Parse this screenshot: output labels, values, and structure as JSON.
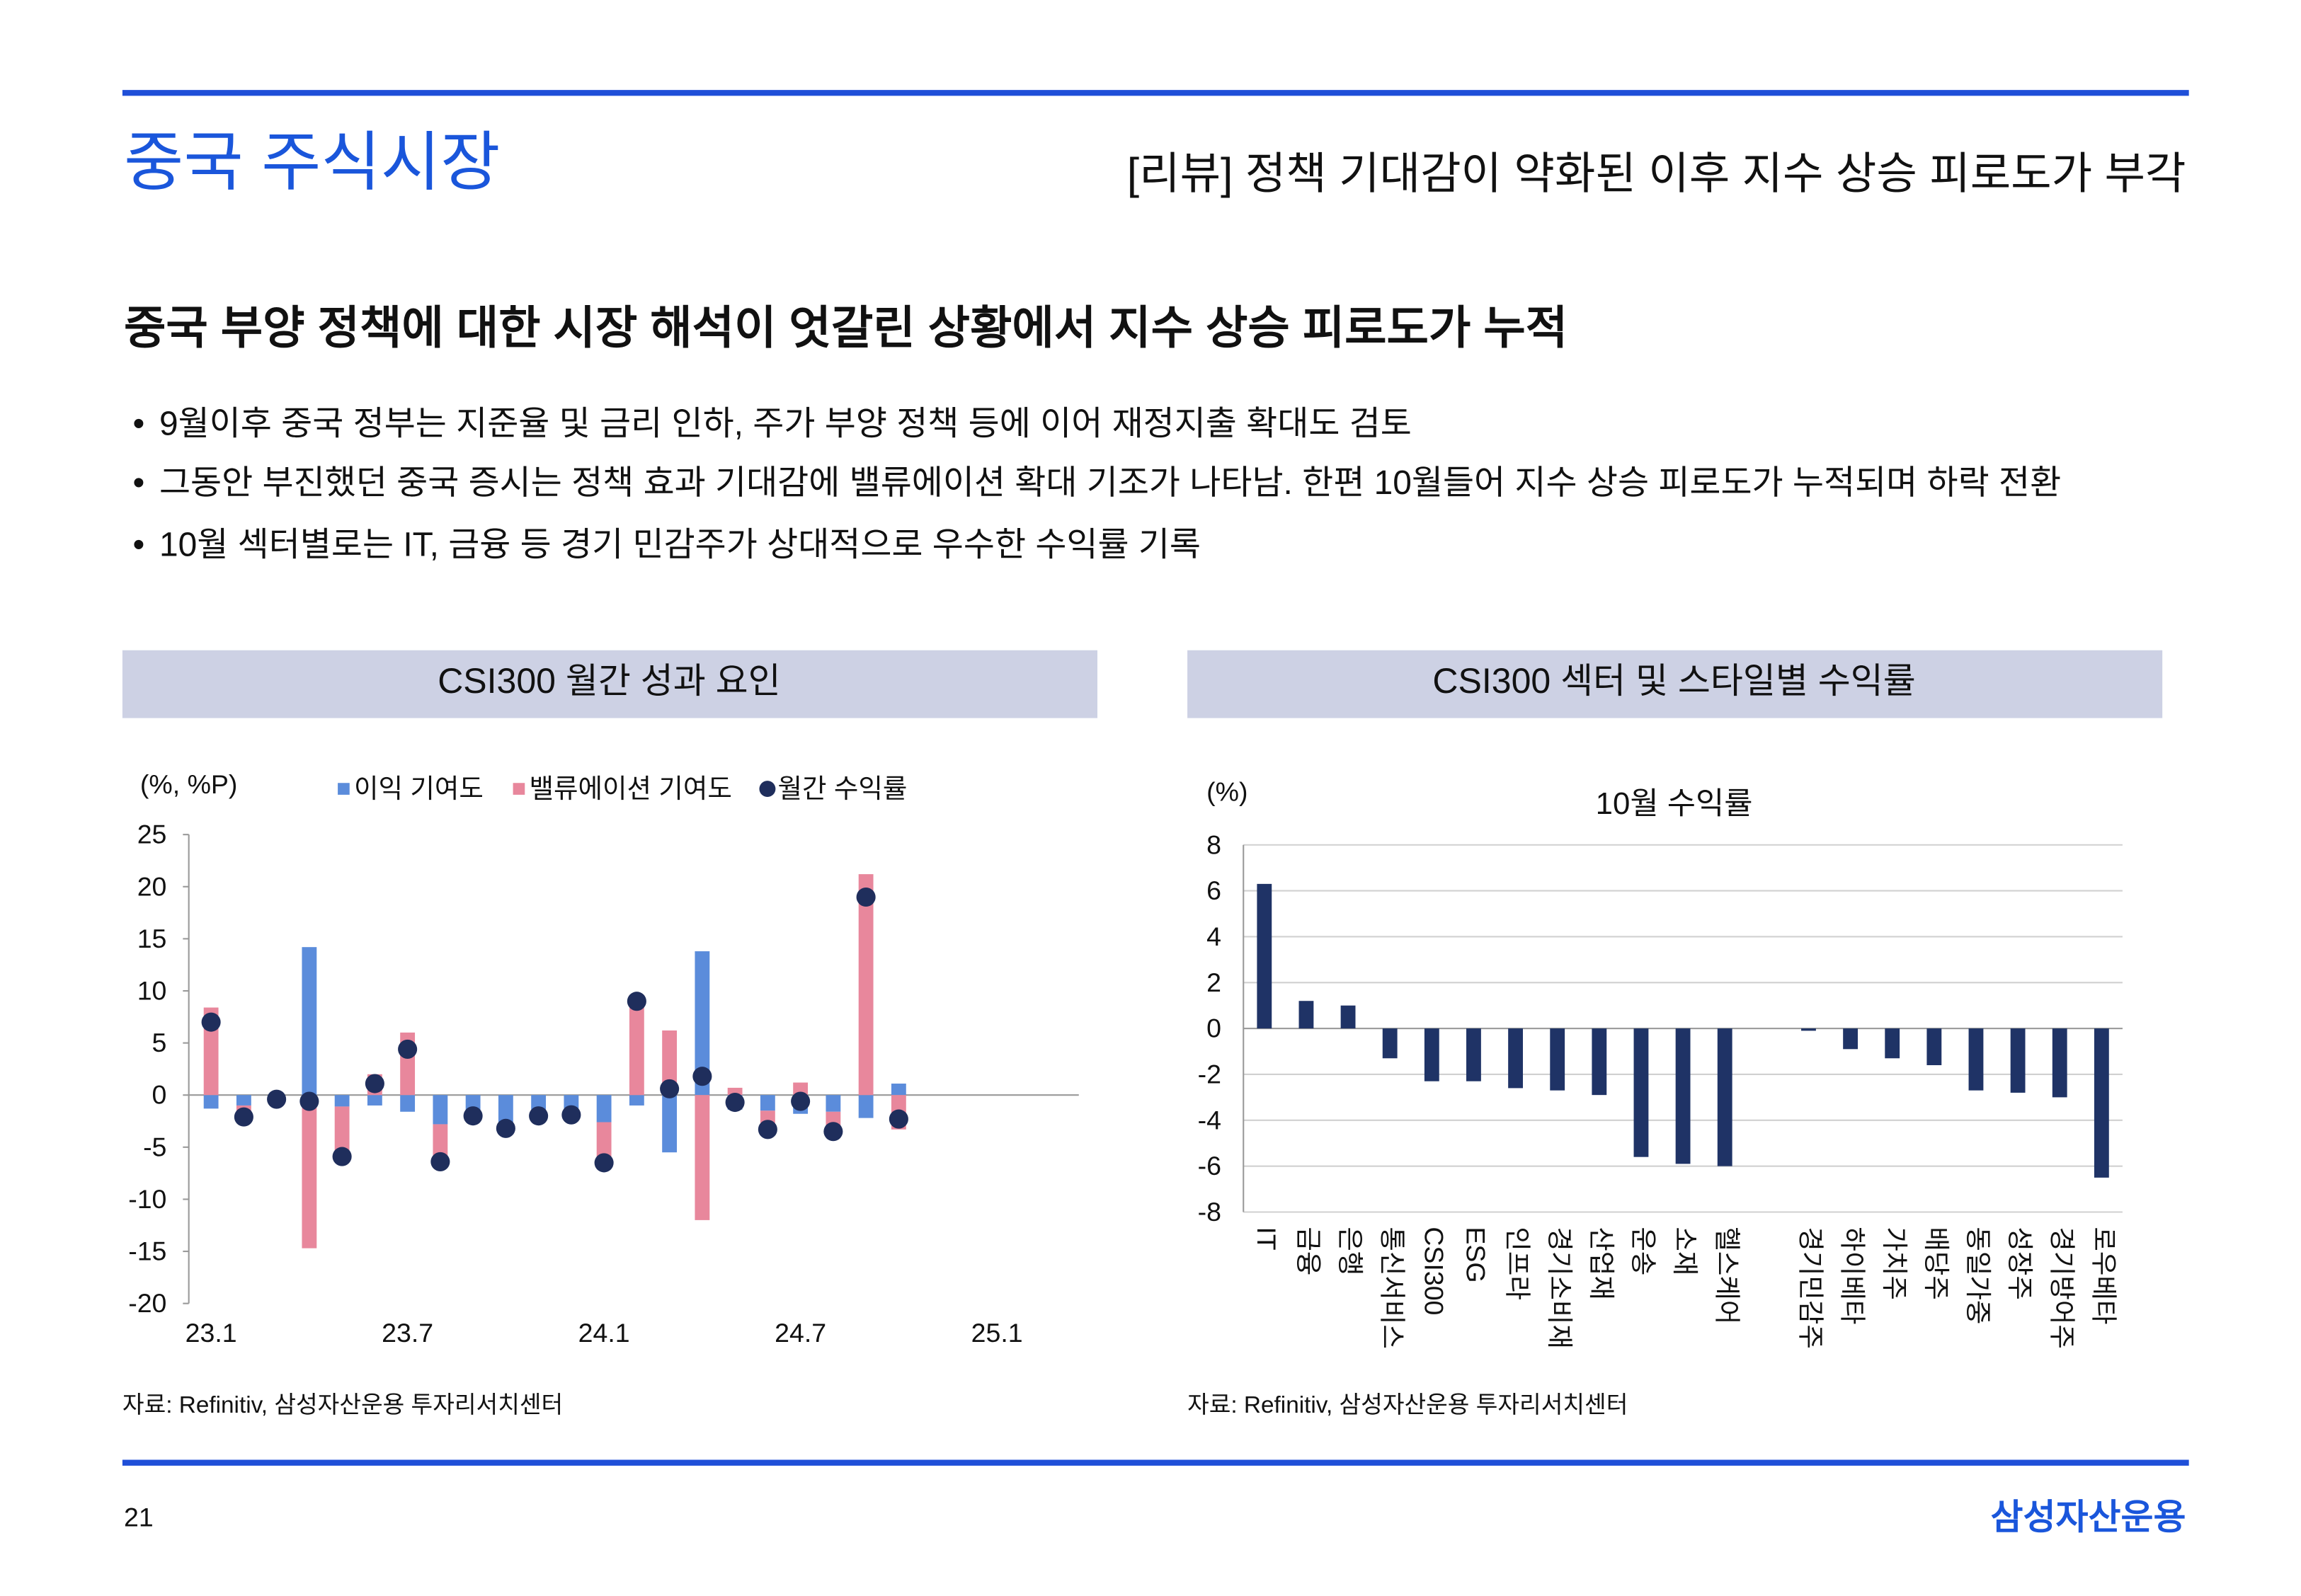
{
  "header": {
    "title": "중국 주식시장",
    "subtitle": "[리뷰] 정책 기대감이 약화된 이후 지수 상승 피로도가 부각"
  },
  "headline": "중국 부양 정책에 대한 시장 해석이 엇갈린 상황에서 지수 상승 피로도가 누적",
  "bullets": [
    "9월이후 중국 정부는 지준율 및 금리 인하, 주가 부양 정책 등에 이어 재정지출 확대도 검토",
    "그동안 부진했던 중국 증시는 정책 효과 기대감에 밸류에이션 확대 기조가 나타남. 한편 10월들어 지수 상승 피로도가 누적되며 하락 전환",
    "10월 섹터별로는 IT, 금융 등 경기 민감주가 상대적으로 우수한 수익률 기록"
  ],
  "chart_data": [
    {
      "type": "bar",
      "title": "CSI300 월간 성과 요인",
      "y_label": "(%, %P)",
      "stacked": true,
      "grid": false,
      "legend": "top",
      "source": "자료: Refinitiv, 삼성자산운용 투자리서치센터",
      "categories": [
        "23.1",
        null,
        null,
        null,
        null,
        null,
        "23.7",
        null,
        null,
        null,
        null,
        null,
        "24.1",
        null,
        null,
        null,
        null,
        null,
        "24.7",
        null,
        null,
        null,
        null,
        null,
        "25.1",
        null,
        null
      ],
      "series": [
        {
          "name": "이익 기여도",
          "type": "bar",
          "color": "#5b8cdb",
          "values": [
            -1.3,
            -1.0,
            -0.2,
            14.2,
            -1.1,
            -1.0,
            -1.6,
            -2.8,
            -1.5,
            -3.0,
            -1.4,
            -1.3,
            -2.6,
            -1.0,
            -5.5,
            13.8,
            -1.4,
            -1.5,
            -1.8,
            -1.6,
            -2.2,
            1.1,
            null,
            null,
            null,
            null,
            null
          ]
        },
        {
          "name": "밸류에이션 기여도",
          "type": "bar",
          "color": "#e8879c",
          "values": [
            8.4,
            -1.1,
            -0.2,
            -14.7,
            -4.6,
            2.0,
            6.0,
            -3.7,
            -0.5,
            -0.3,
            -0.7,
            -0.6,
            -3.9,
            9.6,
            6.2,
            -12.0,
            0.7,
            -1.8,
            1.2,
            -1.9,
            21.2,
            -3.3,
            null,
            null,
            null,
            null,
            null
          ]
        },
        {
          "name": "월간 수익률",
          "type": "dot",
          "color": "#1f2e5c",
          "values": [
            7.0,
            -2.1,
            -0.4,
            -0.6,
            -5.9,
            1.1,
            4.4,
            -6.4,
            -2.0,
            -3.2,
            -2.0,
            -1.9,
            -6.5,
            9.0,
            0.6,
            1.8,
            -0.7,
            -3.3,
            -0.6,
            -3.5,
            19.0,
            -2.3,
            null,
            null,
            null,
            null,
            null
          ]
        }
      ],
      "ylim": [
        -20,
        25
      ],
      "yticks": [
        -20,
        -15,
        -10,
        -5,
        0,
        5,
        10,
        15,
        20,
        25
      ]
    },
    {
      "type": "bar",
      "title": "CSI300 섹터 및 스타일별 수익률",
      "subtitle": "10월 수익률",
      "y_label": "(%)",
      "grid": true,
      "source": "자료: Refinitiv, 삼성자산운용 투자리서치센터",
      "color": "#1f3366",
      "categories": [
        "IT",
        "금융",
        "은행",
        "통신서비스",
        "CSI300",
        "ESG",
        "인프라",
        "경기소비재",
        "산업재",
        "운송",
        "소재",
        "헬스케어",
        null,
        "경기민감주",
        "하이베타",
        "가치주",
        "배당주",
        "동일가중",
        "성장주",
        "경기방어주",
        "로우베타"
      ],
      "values": [
        6.3,
        1.2,
        1.0,
        -1.3,
        -2.3,
        -2.3,
        -2.6,
        -2.7,
        -2.9,
        -5.6,
        -5.9,
        -6.0,
        null,
        -0.1,
        -0.9,
        -1.3,
        -1.6,
        -2.7,
        -2.8,
        -3.0,
        -6.5
      ],
      "ylim": [
        -8,
        8
      ],
      "yticks": [
        -8,
        -6,
        -4,
        -2,
        0,
        2,
        4,
        6,
        8
      ]
    }
  ],
  "footer": {
    "page": "21",
    "brand": "삼성자산운용"
  }
}
